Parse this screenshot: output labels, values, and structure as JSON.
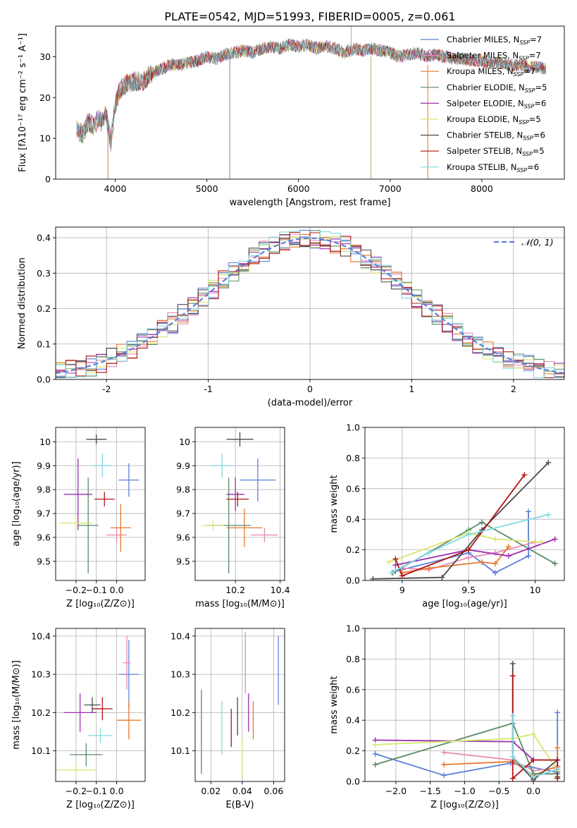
{
  "figure_title": "PLATE=0542, MJD=51993, FIBERID=0005, z=0.061",
  "colors": {
    "Chabrier MILES": "#5b80d8",
    "Salpeter MILES": "#e98bb4",
    "Kroupa MILES": "#e8782e",
    "Chabrier ELODIE": "#5a8a65",
    "Salpeter ELODIE": "#9b2fb0",
    "Kroupa ELODIE": "#d8e66e",
    "Chabrier STELIB": "#4a4a4a",
    "Salpeter STELIB": "#b01515",
    "Kroupa STELIB": "#82d9e0"
  },
  "chart_data": [
    {
      "id": "spectrum",
      "type": "line",
      "title": "PLATE=0542, MJD=51993, FIBERID=0005, z=0.061",
      "xlabel": "wavelength [Angstrom, rest frame]",
      "ylabel": "Flux [fλ10⁻¹⁷ erg cm⁻² s⁻¹ A⁻¹]",
      "xlim": [
        3350,
        8900
      ],
      "ylim": [
        0,
        37.5
      ],
      "xticks": [
        4000,
        5000,
        6000,
        7000,
        8000
      ],
      "yticks": [
        0,
        10,
        20,
        30
      ],
      "grid": false,
      "legend": "upper right",
      "continuum": {
        "x": [
          3580,
          3650,
          3700,
          3760,
          3820,
          3850,
          3900,
          3950,
          4000,
          4050,
          4100,
          4200,
          4300,
          4400,
          4500,
          4600,
          4700,
          4800,
          4900,
          5000,
          5100,
          5200,
          5300,
          5400,
          5500,
          5600,
          5700,
          5800,
          5900,
          6000,
          6100,
          6200,
          6300,
          6400,
          6500,
          6600,
          6700,
          6800,
          6900,
          7000,
          7100,
          7200,
          7300,
          7400,
          7500,
          7600,
          7700,
          7800,
          7900,
          8000,
          8100,
          8200,
          8300,
          8400,
          8500,
          8600,
          8700
        ],
        "y": [
          12,
          11,
          14,
          13,
          15,
          14,
          16,
          9,
          18,
          22,
          23,
          24,
          24,
          26,
          27,
          28,
          28,
          28.5,
          29,
          30,
          29.5,
          30.5,
          31,
          31.5,
          31,
          32,
          32.5,
          32,
          33,
          32.5,
          33,
          32,
          32.5,
          32,
          31,
          32,
          31.5,
          32,
          31.5,
          31,
          30,
          30.5,
          31,
          30,
          30.5,
          30,
          29.5,
          29.5,
          29,
          29,
          28.5,
          28.5,
          28,
          28,
          27.5,
          27.5,
          27
        ]
      },
      "series": [
        {
          "name": "Chabrier MILES",
          "nssp": "7",
          "color": "#5b80d8"
        },
        {
          "name": "Salpeter MILES",
          "nssp": "7",
          "color": "#e98bb4"
        },
        {
          "name": "Kroupa MILES",
          "nssp": "7",
          "color": "#e8782e"
        },
        {
          "name": "Chabrier ELODIE",
          "nssp": "5",
          "color": "#5a8a65"
        },
        {
          "name": "Salpeter ELODIE",
          "nssp": "6",
          "color": "#9b2fb0"
        },
        {
          "name": "Kroupa ELODIE",
          "nssp": "5",
          "color": "#d8e66e"
        },
        {
          "name": "Chabrier STELIB",
          "nssp": "6",
          "color": "#4a4a4a"
        },
        {
          "name": "Salpeter STELIB",
          "nssp": "5",
          "color": "#b01515"
        },
        {
          "name": "Kroupa STELIB",
          "nssp": "6",
          "color": "#82d9e0"
        }
      ],
      "spikes": [
        {
          "x": 3920,
          "y0": 0,
          "y1": 12,
          "color": "#e8782e"
        },
        {
          "x": 5250,
          "y0": 0,
          "y1": 30,
          "color": "#888888"
        },
        {
          "x": 6790,
          "y0": 0,
          "y1": 30,
          "color": "#b0b060"
        },
        {
          "x": 7410,
          "y0": 0,
          "y1": 28,
          "color": "#e8782e"
        },
        {
          "x": 6575,
          "y0": 30,
          "y1": 37.5,
          "color": "#aaaaaa"
        }
      ]
    },
    {
      "id": "residuals",
      "type": "histogram",
      "xlabel": "(data-model)/error",
      "ylabel": "Normed distribution",
      "xlim": [
        -2.5,
        2.5
      ],
      "ylim": [
        0,
        0.43
      ],
      "xticks": [
        -2,
        -1,
        0,
        1,
        2
      ],
      "yticks": [
        0.0,
        0.1,
        0.2,
        0.3,
        0.4
      ],
      "grid": true,
      "legend": "upper right",
      "gaussian_label": "𝒩(0, 1)",
      "gaussian_color": "#5b80d8",
      "bin_edges": [
        -2.5,
        -2.4,
        -2.3,
        -2.2,
        -2.1,
        -2.0,
        -1.9,
        -1.8,
        -1.7,
        -1.6,
        -1.5,
        -1.4,
        -1.3,
        -1.2,
        -1.1,
        -1.0,
        -0.9,
        -0.8,
        -0.7,
        -0.6,
        -0.5,
        -0.4,
        -0.3,
        -0.2,
        -0.1,
        0.0,
        0.1,
        0.2,
        0.3,
        0.4,
        0.5,
        0.6,
        0.7,
        0.8,
        0.9,
        1.0,
        1.1,
        1.2,
        1.3,
        1.4,
        1.5,
        1.6,
        1.7,
        1.8,
        1.9,
        2.0,
        2.1,
        2.2,
        2.3,
        2.4,
        2.5
      ]
    },
    {
      "id": "age_vs_Z",
      "type": "errorbar",
      "xlabel": "Z [log₁₀(Z/Z⊙)]",
      "ylabel": "age  [log₁₀(age/yr)]",
      "xlim": [
        -0.3,
        0.14
      ],
      "ylim": [
        9.42,
        10.06
      ],
      "xticks": [
        -0.2,
        -0.1,
        0.0
      ],
      "xticklabels": [
        "−0.2",
        "−0.1",
        "0.0"
      ],
      "yticks": [
        9.5,
        9.6,
        9.7,
        9.8,
        9.9,
        10.0
      ],
      "grid": true,
      "points": [
        {
          "name": "Chabrier MILES",
          "x": 0.06,
          "y": 9.84,
          "xerr": 0.05,
          "yerr": 0.07
        },
        {
          "name": "Salpeter MILES",
          "x": 0.0,
          "y": 9.61,
          "xerr": 0.05,
          "yerr": 0.03
        },
        {
          "name": "Kroupa MILES",
          "x": 0.02,
          "y": 9.64,
          "xerr": 0.05,
          "yerr": 0.1
        },
        {
          "name": "Chabrier ELODIE",
          "x": -0.14,
          "y": 9.65,
          "xerr": 0.05,
          "yerr": 0.2
        },
        {
          "name": "Salpeter ELODIE",
          "x": -0.19,
          "y": 9.78,
          "xerr": 0.07,
          "yerr": 0.15
        },
        {
          "name": "Kroupa ELODIE",
          "x": -0.2,
          "y": 9.66,
          "xerr": 0.08,
          "yerr": 0.03
        },
        {
          "name": "Chabrier STELIB",
          "x": -0.1,
          "y": 10.01,
          "xerr": 0.05,
          "yerr": 0.02
        },
        {
          "name": "Salpeter STELIB",
          "x": -0.06,
          "y": 9.76,
          "xerr": 0.05,
          "yerr": 0.03
        },
        {
          "name": "Kroupa STELIB",
          "x": -0.07,
          "y": 9.9,
          "xerr": 0.05,
          "yerr": 0.05
        }
      ]
    },
    {
      "id": "age_vs_mass",
      "type": "errorbar",
      "xlabel": "mass [log₁₀(M/M⊙)]",
      "ylabel": "",
      "xlim": [
        10.02,
        10.42
      ],
      "ylim": [
        9.42,
        10.06
      ],
      "xticks": [
        10.2,
        10.4
      ],
      "xticklabels": [
        "10.2",
        "10.4"
      ],
      "yticks": [
        9.5,
        9.6,
        9.7,
        9.8,
        9.9,
        10.0
      ],
      "grid": true,
      "points": [
        {
          "name": "Chabrier MILES",
          "x": 10.3,
          "y": 9.84,
          "xerr": 0.08,
          "yerr": 0.09
        },
        {
          "name": "Salpeter MILES",
          "x": 10.33,
          "y": 9.61,
          "xerr": 0.06,
          "yerr": 0.03
        },
        {
          "name": "Kroupa MILES",
          "x": 10.24,
          "y": 9.64,
          "xerr": 0.08,
          "yerr": 0.08
        },
        {
          "name": "Chabrier ELODIE",
          "x": 10.17,
          "y": 9.65,
          "xerr": 0.1,
          "yerr": 0.2
        },
        {
          "name": "Salpeter ELODIE",
          "x": 10.2,
          "y": 9.78,
          "xerr": 0.04,
          "yerr": 0.07
        },
        {
          "name": "Kroupa ELODIE",
          "x": 10.1,
          "y": 9.65,
          "xerr": 0.05,
          "yerr": 0.02
        },
        {
          "name": "Chabrier STELIB",
          "x": 10.22,
          "y": 10.01,
          "xerr": 0.06,
          "yerr": 0.03
        },
        {
          "name": "Salpeter STELIB",
          "x": 10.21,
          "y": 9.76,
          "xerr": 0.05,
          "yerr": 0.03
        },
        {
          "name": "Kroupa STELIB",
          "x": 10.14,
          "y": 9.9,
          "xerr": 0.05,
          "yerr": 0.05
        }
      ]
    },
    {
      "id": "massweight_vs_age",
      "type": "line",
      "xlabel": "age  [log₁₀(age/yr)]",
      "ylabel": "mass weight",
      "xlim": [
        8.72,
        10.22
      ],
      "ylim": [
        0,
        1.0
      ],
      "xticks": [
        9.0,
        9.5,
        10.0
      ],
      "yticks": [
        0.0,
        0.2,
        0.4,
        0.6,
        0.8,
        1.0
      ],
      "grid": true,
      "series": [
        {
          "name": "Chabrier MILES",
          "x": [
            8.95,
            9.5,
            9.7,
            9.95,
            9.95
          ],
          "y": [
            0.06,
            0.18,
            0.05,
            0.16,
            0.45
          ]
        },
        {
          "name": "Salpeter MILES",
          "x": [
            9.0,
            9.2,
            9.5,
            9.7,
            10.0
          ],
          "y": [
            0.08,
            0.07,
            0.15,
            0.18,
            0.25
          ]
        },
        {
          "name": "Kroupa MILES",
          "x": [
            9.0,
            9.2,
            9.6,
            9.7,
            9.8
          ],
          "y": [
            0.05,
            0.08,
            0.12,
            0.11,
            0.22
          ]
        },
        {
          "name": "Chabrier ELODIE",
          "x": [
            8.93,
            9.5,
            9.6,
            10.15
          ],
          "y": [
            0.05,
            0.33,
            0.38,
            0.11
          ]
        },
        {
          "name": "Salpeter ELODIE",
          "x": [
            8.95,
            9.5,
            9.8,
            10.15
          ],
          "y": [
            0.1,
            0.2,
            0.16,
            0.27
          ]
        },
        {
          "name": "Kroupa ELODIE",
          "x": [
            8.9,
            9.5,
            9.7,
            10.05
          ],
          "y": [
            0.12,
            0.31,
            0.27,
            0.25
          ]
        },
        {
          "name": "Chabrier STELIB",
          "x": [
            8.78,
            9.3,
            9.6,
            10.1
          ],
          "y": [
            0.01,
            0.02,
            0.33,
            0.77
          ]
        },
        {
          "name": "Salpeter STELIB",
          "x": [
            8.95,
            9.0,
            9.5,
            9.92
          ],
          "y": [
            0.14,
            0.03,
            0.2,
            0.69
          ]
        },
        {
          "name": "Kroupa STELIB",
          "x": [
            8.92,
            9.2,
            9.5,
            10.1
          ],
          "y": [
            0.05,
            0.18,
            0.3,
            0.43
          ]
        }
      ]
    },
    {
      "id": "mass_vs_Z",
      "type": "errorbar",
      "xlabel": "Z [log₁₀(Z/Z⊙)]",
      "ylabel": "mass [log₁₀(M/M⊙)]",
      "xlim": [
        -0.3,
        0.14
      ],
      "ylim": [
        10.02,
        10.42
      ],
      "xticks": [
        -0.2,
        -0.1,
        0.0
      ],
      "xticklabels": [
        "−0.2",
        "−0.1",
        "0.0"
      ],
      "yticks": [
        10.1,
        10.2,
        10.3,
        10.4
      ],
      "grid": true,
      "points": [
        {
          "name": "Chabrier MILES",
          "x": 0.06,
          "y": 10.3,
          "xerr": 0.05,
          "yerr": 0.09
        },
        {
          "name": "Salpeter MILES",
          "x": 0.05,
          "y": 10.33,
          "xerr": 0.02,
          "yerr": 0.07
        },
        {
          "name": "Kroupa MILES",
          "x": 0.06,
          "y": 10.18,
          "xerr": 0.06,
          "yerr": 0.05
        },
        {
          "name": "Chabrier ELODIE",
          "x": -0.15,
          "y": 10.09,
          "xerr": 0.08,
          "yerr": 0.03
        },
        {
          "name": "Salpeter ELODIE",
          "x": -0.18,
          "y": 10.2,
          "xerr": 0.08,
          "yerr": 0.05
        },
        {
          "name": "Kroupa ELODIE",
          "x": -0.2,
          "y": 10.05,
          "xerr": 0.1,
          "yerr": 0.02
        },
        {
          "name": "Chabrier STELIB",
          "x": -0.12,
          "y": 10.22,
          "xerr": 0.04,
          "yerr": 0.02
        },
        {
          "name": "Salpeter STELIB",
          "x": -0.07,
          "y": 10.21,
          "xerr": 0.05,
          "yerr": 0.03
        },
        {
          "name": "Kroupa STELIB",
          "x": -0.08,
          "y": 10.14,
          "xerr": 0.06,
          "yerr": 0.02
        }
      ]
    },
    {
      "id": "mass_vs_ebv",
      "type": "errorbar",
      "xlabel": "E(B-V)",
      "ylabel": "",
      "xlim": [
        0.01,
        0.067
      ],
      "ylim": [
        10.02,
        10.42
      ],
      "xticks": [
        0.02,
        0.04,
        0.06
      ],
      "xticklabels": [
        "0.02",
        "0.04",
        "0.06"
      ],
      "yticks": [
        10.1,
        10.2,
        10.3,
        10.4
      ],
      "grid": true,
      "points": [
        {
          "name": "Chabrier MILES",
          "x": 0.063,
          "y": 10.31,
          "xerr": 0,
          "yerr": 0.09
        },
        {
          "name": "Salpeter MILES",
          "x": 0.042,
          "y": 10.33,
          "xerr": 0,
          "yerr": 0.08
        },
        {
          "name": "Kroupa MILES",
          "x": 0.047,
          "y": 10.18,
          "xerr": 0,
          "yerr": 0.05
        },
        {
          "name": "Chabrier ELODIE",
          "x": 0.014,
          "y": 10.15,
          "xerr": 0,
          "yerr": 0.11
        },
        {
          "name": "Salpeter ELODIE",
          "x": 0.044,
          "y": 10.2,
          "xerr": 0,
          "yerr": 0.05
        },
        {
          "name": "Kroupa ELODIE",
          "x": 0.04,
          "y": 10.08,
          "xerr": 0,
          "yerr": 0.05
        },
        {
          "name": "Chabrier STELIB",
          "x": 0.037,
          "y": 10.19,
          "xerr": 0,
          "yerr": 0.05
        },
        {
          "name": "Salpeter STELIB",
          "x": 0.033,
          "y": 10.16,
          "xerr": 0,
          "yerr": 0.05
        },
        {
          "name": "Kroupa STELIB",
          "x": 0.027,
          "y": 10.16,
          "xerr": 0,
          "yerr": 0.07
        }
      ]
    },
    {
      "id": "massweight_vs_Z",
      "type": "line",
      "xlabel": "Z [log₁₀(Z/Z⊙)]",
      "ylabel": "mass weight",
      "xlim": [
        -2.45,
        0.45
      ],
      "ylim": [
        0,
        1.0
      ],
      "xticks": [
        -2.0,
        -1.5,
        -1.0,
        -0.5,
        0.0
      ],
      "xticklabels": [
        "−2.0",
        "−1.5",
        "−1.0",
        "−0.5",
        "0.0"
      ],
      "yticks": [
        0.0,
        0.2,
        0.4,
        0.6,
        0.8,
        1.0
      ],
      "grid": true,
      "series": [
        {
          "name": "Chabrier MILES",
          "x": [
            -2.3,
            -1.3,
            -0.33,
            0.35,
            0.35
          ],
          "y": [
            0.18,
            0.04,
            0.12,
            0.06,
            0.45
          ]
        },
        {
          "name": "Salpeter MILES",
          "x": [
            -1.3,
            -0.3,
            0.0,
            0.35
          ],
          "y": [
            0.19,
            0.14,
            0.07,
            0.09
          ]
        },
        {
          "name": "Kroupa MILES",
          "x": [
            -1.3,
            -0.3,
            0.0,
            0.35,
            0.35
          ],
          "y": [
            0.11,
            0.13,
            0.04,
            0.1,
            0.22
          ]
        },
        {
          "name": "Chabrier ELODIE",
          "x": [
            -2.3,
            -0.3,
            0.0,
            0.35
          ],
          "y": [
            0.11,
            0.38,
            0.05,
            0.05
          ]
        },
        {
          "name": "Salpeter ELODIE",
          "x": [
            -2.3,
            -0.3,
            0.0,
            0.35
          ],
          "y": [
            0.27,
            0.26,
            0.14,
            0.14
          ]
        },
        {
          "name": "Kroupa ELODIE",
          "x": [
            -2.3,
            -0.3,
            0.0,
            0.35
          ],
          "y": [
            0.24,
            0.28,
            0.31,
            0.07
          ]
        },
        {
          "name": "Chabrier STELIB",
          "x": [
            -0.3,
            -0.3,
            0.0,
            0.35,
            0.35
          ],
          "y": [
            0.77,
            0.16,
            0.01,
            0.14,
            0.03
          ]
        },
        {
          "name": "Salpeter STELIB",
          "x": [
            -0.3,
            -0.3,
            0.0,
            0.35,
            0.35
          ],
          "y": [
            0.69,
            0.02,
            0.14,
            0.14,
            0.02
          ]
        },
        {
          "name": "Kroupa STELIB",
          "x": [
            -0.3,
            -0.3,
            0.0,
            0.35
          ],
          "y": [
            0.43,
            0.16,
            0.03,
            0.08
          ]
        }
      ]
    }
  ]
}
